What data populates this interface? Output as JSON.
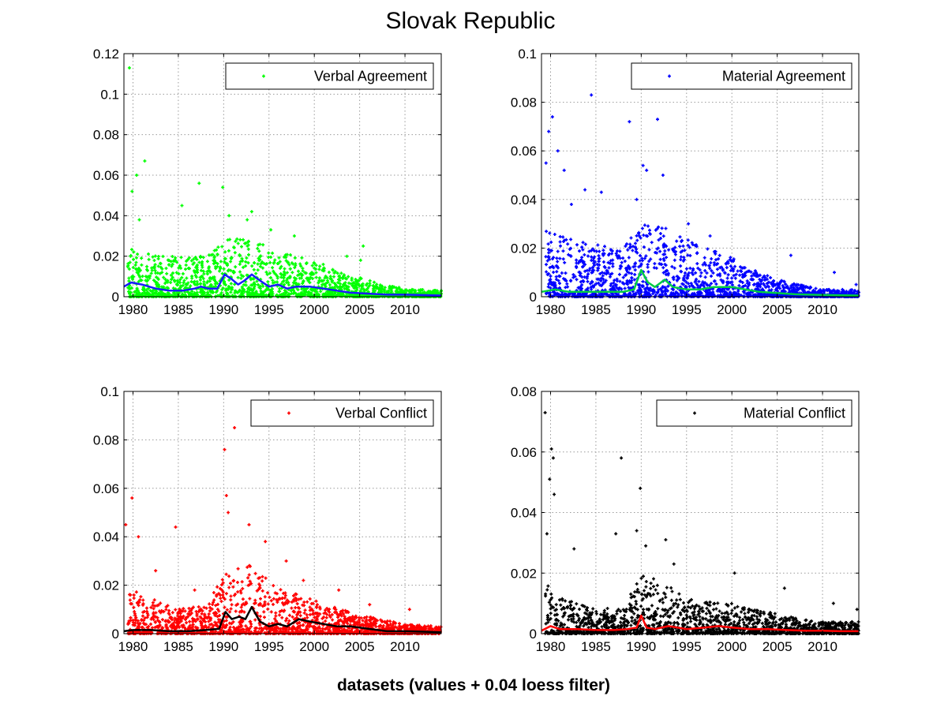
{
  "figure": {
    "title": "Slovak Republic",
    "xlabel": "datasets (values + 0.04 loess filter)"
  },
  "chart_data": [
    {
      "type": "scatter",
      "legend": "Verbal Agreement",
      "legend_position": "top-right",
      "grid": true,
      "xlim": [
        1979,
        2014
      ],
      "ylim": [
        0,
        0.12
      ],
      "xticks": [
        "1980",
        "1985",
        "1990",
        "1995",
        "2000",
        "2005",
        "2010"
      ],
      "yticks": [
        "0",
        "0.02",
        "0.04",
        "0.06",
        "0.08",
        "0.1",
        "0.12"
      ],
      "yticks_values": [
        0,
        0.02,
        0.04,
        0.06,
        0.08,
        0.1,
        0.12
      ],
      "marker_color": "#00ff00",
      "trend_color": "#1a1aff",
      "envelope": [
        [
          1979,
          0.025
        ],
        [
          1981,
          0.022
        ],
        [
          1985,
          0.02
        ],
        [
          1988,
          0.02
        ],
        [
          1990,
          0.028
        ],
        [
          1993,
          0.03
        ],
        [
          1996,
          0.022
        ],
        [
          2000,
          0.018
        ],
        [
          2003,
          0.012
        ],
        [
          2006,
          0.008
        ],
        [
          2010,
          0.004
        ],
        [
          2014,
          0.003
        ]
      ],
      "outliers": [
        [
          1979.6,
          0.113
        ],
        [
          1980.4,
          0.06
        ],
        [
          1981.3,
          0.067
        ],
        [
          1979.9,
          0.052
        ],
        [
          1980.7,
          0.038
        ],
        [
          1987.3,
          0.056
        ],
        [
          1989.9,
          0.054
        ],
        [
          1990.6,
          0.04
        ],
        [
          1993.1,
          0.042
        ],
        [
          1985.4,
          0.045
        ],
        [
          1992.6,
          0.038
        ],
        [
          1995.2,
          0.033
        ],
        [
          1997.8,
          0.03
        ],
        [
          2005.4,
          0.025
        ],
        [
          2005.1,
          0.018
        ],
        [
          2003.6,
          0.02
        ]
      ],
      "trend": [
        [
          1979,
          0.005
        ],
        [
          1979.8,
          0.007
        ],
        [
          1981,
          0.006
        ],
        [
          1982.5,
          0.004
        ],
        [
          1984,
          0.003
        ],
        [
          1985.5,
          0.003
        ],
        [
          1986.8,
          0.004
        ],
        [
          1987.5,
          0.005
        ],
        [
          1988.3,
          0.004
        ],
        [
          1989.3,
          0.004
        ],
        [
          1990.1,
          0.011
        ],
        [
          1990.8,
          0.009
        ],
        [
          1991.6,
          0.006
        ],
        [
          1992.3,
          0.008
        ],
        [
          1993.1,
          0.011
        ],
        [
          1994,
          0.008
        ],
        [
          1995,
          0.005
        ],
        [
          1996,
          0.006
        ],
        [
          1997,
          0.004
        ],
        [
          1998,
          0.005
        ],
        [
          1999.5,
          0.005
        ],
        [
          2001,
          0.004
        ],
        [
          2002.5,
          0.003
        ],
        [
          2004,
          0.002
        ],
        [
          2006,
          0.0015
        ],
        [
          2008,
          0.001
        ],
        [
          2010,
          0.001
        ],
        [
          2012,
          0.0008
        ],
        [
          2014,
          0.0006
        ]
      ]
    },
    {
      "type": "scatter",
      "legend": "Material Agreement",
      "legend_position": "top-right",
      "grid": true,
      "xlim": [
        1979,
        2014
      ],
      "ylim": [
        0,
        0.1
      ],
      "xticks": [
        "1980",
        "1985",
        "1990",
        "1995",
        "2000",
        "2005",
        "2010"
      ],
      "yticks": [
        "0",
        "0.02",
        "0.04",
        "0.06",
        "0.08",
        "0.1"
      ],
      "yticks_values": [
        0,
        0.02,
        0.04,
        0.06,
        0.08,
        0.1
      ],
      "marker_color": "#0000ff",
      "trend_color": "#00cc44",
      "envelope": [
        [
          1979,
          0.03
        ],
        [
          1981,
          0.025
        ],
        [
          1985,
          0.022
        ],
        [
          1988,
          0.02
        ],
        [
          1990,
          0.03
        ],
        [
          1993,
          0.028
        ],
        [
          1996,
          0.022
        ],
        [
          2000,
          0.016
        ],
        [
          2003,
          0.01
        ],
        [
          2006,
          0.006
        ],
        [
          2010,
          0.003
        ],
        [
          2014,
          0.003
        ]
      ],
      "outliers": [
        [
          1979.5,
          0.055
        ],
        [
          1979.8,
          0.068
        ],
        [
          1980.2,
          0.074
        ],
        [
          1984.5,
          0.083
        ],
        [
          1988.7,
          0.072
        ],
        [
          1990.2,
          0.054
        ],
        [
          1991.8,
          0.073
        ],
        [
          1983.8,
          0.044
        ],
        [
          1981.5,
          0.052
        ],
        [
          1980.8,
          0.06
        ],
        [
          1990.6,
          0.052
        ],
        [
          1992.4,
          0.05
        ],
        [
          1989.5,
          0.04
        ],
        [
          1995.2,
          0.03
        ],
        [
          1997.6,
          0.025
        ],
        [
          2006.5,
          0.017
        ],
        [
          2011.3,
          0.01
        ],
        [
          2013.7,
          0.005
        ],
        [
          1985.6,
          0.043
        ],
        [
          1982.3,
          0.038
        ]
      ],
      "trend": [
        [
          1979,
          0.002
        ],
        [
          1980.5,
          0.003
        ],
        [
          1982,
          0.002
        ],
        [
          1985,
          0.002
        ],
        [
          1988,
          0.002
        ],
        [
          1989.2,
          0.003
        ],
        [
          1990,
          0.011
        ],
        [
          1990.7,
          0.006
        ],
        [
          1991.5,
          0.004
        ],
        [
          1992.6,
          0.007
        ],
        [
          1993.5,
          0.004
        ],
        [
          1995,
          0.003
        ],
        [
          1996.5,
          0.003
        ],
        [
          1998,
          0.004
        ],
        [
          2000,
          0.004
        ],
        [
          2001.5,
          0.003
        ],
        [
          2003,
          0.002
        ],
        [
          2005,
          0.0015
        ],
        [
          2007,
          0.001
        ],
        [
          2010,
          0.0007
        ],
        [
          2014,
          0.0005
        ]
      ]
    },
    {
      "type": "scatter",
      "legend": "Verbal Conflict",
      "legend_position": "top-right",
      "grid": true,
      "xlim": [
        1979,
        2014
      ],
      "ylim": [
        0,
        0.1
      ],
      "xticks": [
        "1980",
        "1985",
        "1990",
        "1995",
        "2000",
        "2005",
        "2010"
      ],
      "yticks": [
        "0",
        "0.02",
        "0.04",
        "0.06",
        "0.08",
        "0.1"
      ],
      "yticks_values": [
        0,
        0.02,
        0.04,
        0.06,
        0.08,
        0.1
      ],
      "marker_color": "#ff0000",
      "trend_color": "#000000",
      "envelope": [
        [
          1979,
          0.02
        ],
        [
          1981,
          0.016
        ],
        [
          1985,
          0.01
        ],
        [
          1988,
          0.012
        ],
        [
          1990,
          0.025
        ],
        [
          1993,
          0.03
        ],
        [
          1996,
          0.02
        ],
        [
          2000,
          0.014
        ],
        [
          2003,
          0.01
        ],
        [
          2006,
          0.007
        ],
        [
          2010,
          0.004
        ],
        [
          2014,
          0.003
        ]
      ],
      "outliers": [
        [
          1979.2,
          0.045
        ],
        [
          1979.9,
          0.056
        ],
        [
          1980.6,
          0.04
        ],
        [
          1984.7,
          0.044
        ],
        [
          1990.1,
          0.076
        ],
        [
          1990.3,
          0.057
        ],
        [
          1991.2,
          0.085
        ],
        [
          1990.5,
          0.05
        ],
        [
          1992.8,
          0.045
        ],
        [
          1994.6,
          0.038
        ],
        [
          1996.9,
          0.03
        ],
        [
          1998.8,
          0.022
        ],
        [
          2002.7,
          0.018
        ],
        [
          2006.1,
          0.012
        ],
        [
          2010.5,
          0.01
        ],
        [
          1982.5,
          0.026
        ],
        [
          1986.8,
          0.018
        ]
      ],
      "trend": [
        [
          1979,
          0.001
        ],
        [
          1980,
          0.0015
        ],
        [
          1982,
          0.0015
        ],
        [
          1984,
          0.001
        ],
        [
          1986,
          0.001
        ],
        [
          1988,
          0.0015
        ],
        [
          1989.5,
          0.002
        ],
        [
          1990.2,
          0.009
        ],
        [
          1990.9,
          0.006
        ],
        [
          1991.7,
          0.007
        ],
        [
          1992.4,
          0.006
        ],
        [
          1993.1,
          0.011
        ],
        [
          1994,
          0.005
        ],
        [
          1995,
          0.003
        ],
        [
          1996,
          0.004
        ],
        [
          1997,
          0.003
        ],
        [
          1998.3,
          0.006
        ],
        [
          1999.5,
          0.005
        ],
        [
          2001,
          0.004
        ],
        [
          2002.5,
          0.003
        ],
        [
          2004,
          0.003
        ],
        [
          2006,
          0.002
        ],
        [
          2008,
          0.001
        ],
        [
          2010,
          0.001
        ],
        [
          2012,
          0.0008
        ],
        [
          2014,
          0.0006
        ]
      ]
    },
    {
      "type": "scatter",
      "legend": "Material Conflict",
      "legend_position": "top-right",
      "grid": true,
      "xlim": [
        1979,
        2014
      ],
      "ylim": [
        0,
        0.08
      ],
      "xticks": [
        "1980",
        "1985",
        "1990",
        "1995",
        "2000",
        "2005",
        "2010"
      ],
      "yticks": [
        "0",
        "0.02",
        "0.04",
        "0.06",
        "0.08"
      ],
      "yticks_values": [
        0,
        0.02,
        0.04,
        0.06,
        0.08
      ],
      "marker_color": "#000000",
      "trend_color": "#ff0000",
      "envelope": [
        [
          1979,
          0.018
        ],
        [
          1981,
          0.012
        ],
        [
          1985,
          0.008
        ],
        [
          1988,
          0.009
        ],
        [
          1990,
          0.02
        ],
        [
          1993,
          0.016
        ],
        [
          1996,
          0.011
        ],
        [
          2000,
          0.01
        ],
        [
          2003,
          0.008
        ],
        [
          2006,
          0.006
        ],
        [
          2010,
          0.004
        ],
        [
          2014,
          0.004
        ]
      ],
      "outliers": [
        [
          1979.4,
          0.073
        ],
        [
          1980.1,
          0.061
        ],
        [
          1980.3,
          0.058
        ],
        [
          1979.9,
          0.051
        ],
        [
          1980.4,
          0.046
        ],
        [
          1979.6,
          0.033
        ],
        [
          1987.8,
          0.058
        ],
        [
          1989.9,
          0.048
        ],
        [
          1989.5,
          0.034
        ],
        [
          1987.2,
          0.033
        ],
        [
          1992.7,
          0.031
        ],
        [
          1990.5,
          0.029
        ],
        [
          1982.6,
          0.028
        ],
        [
          1993.6,
          0.023
        ],
        [
          2000.3,
          0.02
        ],
        [
          2005.8,
          0.015
        ],
        [
          2011.2,
          0.01
        ],
        [
          2013.8,
          0.008
        ]
      ],
      "trend": [
        [
          1979,
          0.001
        ],
        [
          1980,
          0.0025
        ],
        [
          1981,
          0.0015
        ],
        [
          1983,
          0.0015
        ],
        [
          1985,
          0.0012
        ],
        [
          1987,
          0.0012
        ],
        [
          1988.5,
          0.0015
        ],
        [
          1989.5,
          0.002
        ],
        [
          1990,
          0.006
        ],
        [
          1990.6,
          0.002
        ],
        [
          1991.5,
          0.0015
        ],
        [
          1993,
          0.0025
        ],
        [
          1995,
          0.0015
        ],
        [
          1997,
          0.002
        ],
        [
          1998.5,
          0.0025
        ],
        [
          2000,
          0.002
        ],
        [
          2002,
          0.0015
        ],
        [
          2004,
          0.0015
        ],
        [
          2006,
          0.0012
        ],
        [
          2008,
          0.001
        ],
        [
          2010,
          0.001
        ],
        [
          2012,
          0.0008
        ],
        [
          2014,
          0.0008
        ]
      ]
    }
  ]
}
